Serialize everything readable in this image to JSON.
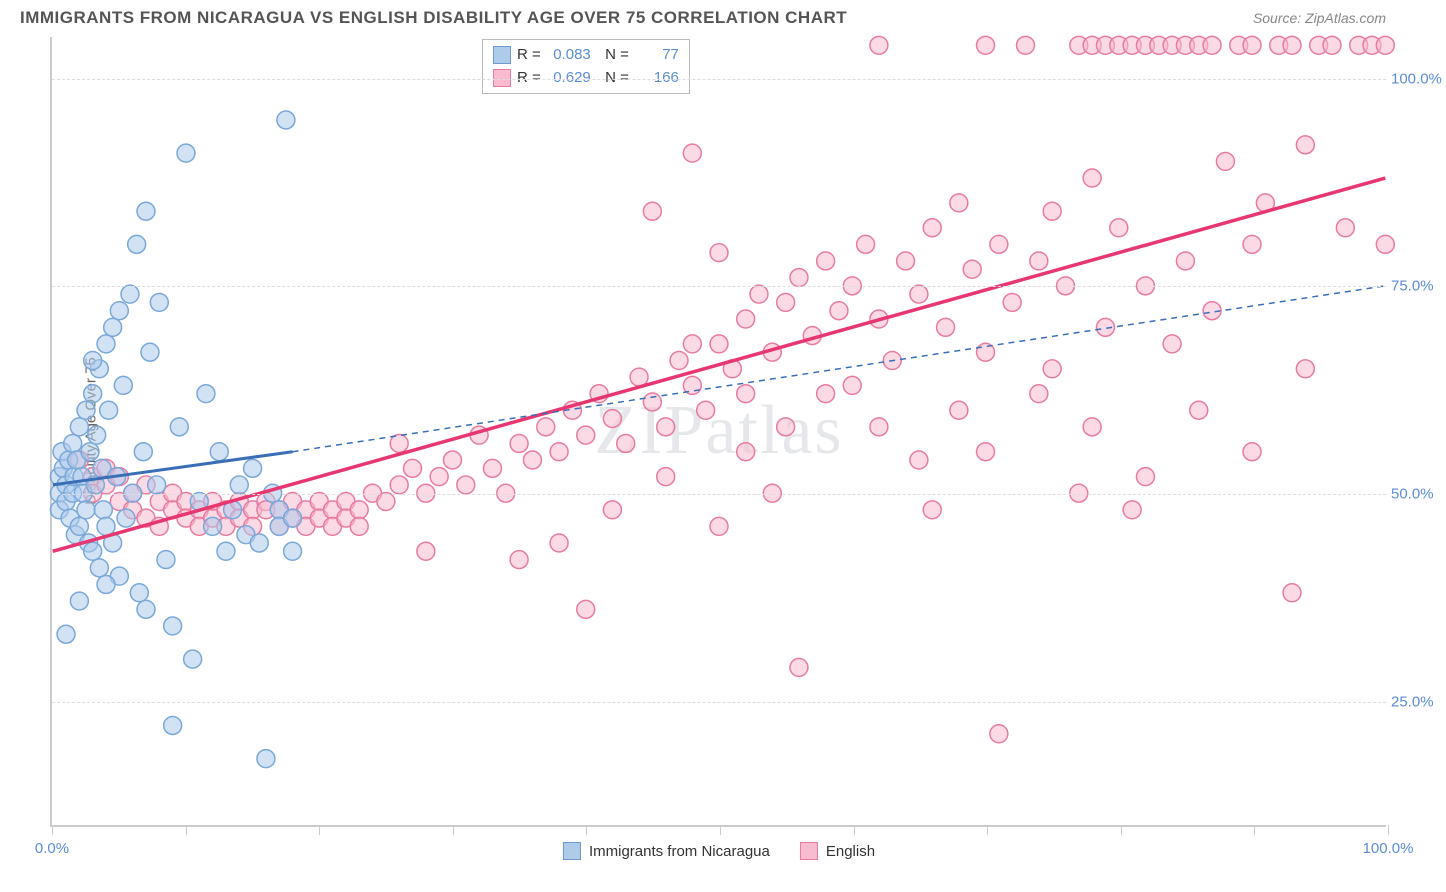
{
  "title": "IMMIGRANTS FROM NICARAGUA VS ENGLISH DISABILITY AGE OVER 75 CORRELATION CHART",
  "source": "Source: ZipAtlas.com",
  "watermark": "ZIPatlas",
  "ylabel": "Disability Age Over 75",
  "chart": {
    "type": "scatter",
    "xlim": [
      0,
      100
    ],
    "ylim": [
      10,
      105
    ],
    "yticks": [
      25,
      50,
      75,
      100
    ],
    "ytick_labels": [
      "25.0%",
      "50.0%",
      "75.0%",
      "100.0%"
    ],
    "xticks": [
      0,
      10,
      20,
      30,
      40,
      50,
      60,
      70,
      80,
      90,
      100
    ],
    "xtick_labels_shown": {
      "0": "0.0%",
      "100": "100.0%"
    },
    "grid_color": "#dddddd",
    "background_color": "#ffffff",
    "marker_radius": 9,
    "marker_stroke_width": 1.5,
    "series": [
      {
        "name": "Immigrants from Nicaragua",
        "fill": "rgba(173,202,237,0.55)",
        "stroke": "#7aa8d8",
        "R": "0.083",
        "N": "77",
        "trend_solid": {
          "x1": 0,
          "y1": 51,
          "x2": 18,
          "y2": 55,
          "color": "#3a6fb7",
          "width": 3
        },
        "trend_dash": {
          "x1": 18,
          "y1": 55,
          "x2": 100,
          "y2": 75,
          "color": "#3a6fb7",
          "width": 1.5
        },
        "points": [
          [
            0.5,
            50
          ],
          [
            0.5,
            52
          ],
          [
            0.5,
            48
          ],
          [
            0.7,
            55
          ],
          [
            0.8,
            53
          ],
          [
            1,
            51
          ],
          [
            1,
            49
          ],
          [
            1.2,
            54
          ],
          [
            1.3,
            47
          ],
          [
            1.5,
            56
          ],
          [
            1.5,
            50
          ],
          [
            1.6,
            52
          ],
          [
            1.7,
            45
          ],
          [
            1.8,
            54
          ],
          [
            2,
            58
          ],
          [
            2,
            46
          ],
          [
            2.2,
            52
          ],
          [
            2.3,
            50
          ],
          [
            2.5,
            60
          ],
          [
            2.5,
            48
          ],
          [
            2.7,
            44
          ],
          [
            2.8,
            55
          ],
          [
            3,
            62
          ],
          [
            3,
            43
          ],
          [
            3.2,
            51
          ],
          [
            3.3,
            57
          ],
          [
            3.5,
            65
          ],
          [
            3.5,
            41
          ],
          [
            3.7,
            53
          ],
          [
            3.8,
            48
          ],
          [
            4,
            68
          ],
          [
            4,
            46
          ],
          [
            4.2,
            60
          ],
          [
            4.5,
            70
          ],
          [
            4.5,
            44
          ],
          [
            4.8,
            52
          ],
          [
            5,
            72
          ],
          [
            5,
            40
          ],
          [
            5.3,
            63
          ],
          [
            5.5,
            47
          ],
          [
            5.8,
            74
          ],
          [
            6,
            50
          ],
          [
            6.3,
            80
          ],
          [
            6.5,
            38
          ],
          [
            6.8,
            55
          ],
          [
            7,
            84
          ],
          [
            7,
            36
          ],
          [
            7.3,
            67
          ],
          [
            7.8,
            51
          ],
          [
            8,
            73
          ],
          [
            8.5,
            42
          ],
          [
            9,
            34
          ],
          [
            9.5,
            58
          ],
          [
            10,
            91
          ],
          [
            10.5,
            30
          ],
          [
            11,
            49
          ],
          [
            11.5,
            62
          ],
          [
            12,
            46
          ],
          [
            12.5,
            55
          ],
          [
            13,
            43
          ],
          [
            13.5,
            48
          ],
          [
            14,
            51
          ],
          [
            14.5,
            45
          ],
          [
            15,
            53
          ],
          [
            15.5,
            44
          ],
          [
            16,
            18
          ],
          [
            16.5,
            50
          ],
          [
            17,
            48
          ],
          [
            17,
            46
          ],
          [
            17.5,
            95
          ],
          [
            18,
            43
          ],
          [
            18,
            47
          ],
          [
            1,
            33
          ],
          [
            2,
            37
          ],
          [
            3,
            66
          ],
          [
            4,
            39
          ],
          [
            9,
            22
          ]
        ]
      },
      {
        "name": "English",
        "fill": "rgba(248,187,208,0.55)",
        "stroke": "#e97ba0",
        "R": "0.629",
        "N": "166",
        "trend_solid": {
          "x1": 0,
          "y1": 43,
          "x2": 100,
          "y2": 88,
          "color": "#e73670",
          "width": 3.5
        },
        "trend_dash": null,
        "points": [
          [
            2,
            54
          ],
          [
            3,
            52
          ],
          [
            3,
            50
          ],
          [
            4,
            53
          ],
          [
            4,
            51
          ],
          [
            5,
            52
          ],
          [
            5,
            49
          ],
          [
            6,
            50
          ],
          [
            6,
            48
          ],
          [
            7,
            51
          ],
          [
            7,
            47
          ],
          [
            8,
            49
          ],
          [
            8,
            46
          ],
          [
            9,
            50
          ],
          [
            9,
            48
          ],
          [
            10,
            49
          ],
          [
            10,
            47
          ],
          [
            11,
            48
          ],
          [
            11,
            46
          ],
          [
            12,
            49
          ],
          [
            12,
            47
          ],
          [
            13,
            48
          ],
          [
            13,
            46
          ],
          [
            14,
            49
          ],
          [
            14,
            47
          ],
          [
            15,
            48
          ],
          [
            15,
            46
          ],
          [
            16,
            49
          ],
          [
            16,
            48
          ],
          [
            17,
            48
          ],
          [
            17,
            46
          ],
          [
            18,
            49
          ],
          [
            18,
            47
          ],
          [
            19,
            48
          ],
          [
            19,
            46
          ],
          [
            20,
            49
          ],
          [
            20,
            47
          ],
          [
            21,
            48
          ],
          [
            21,
            46
          ],
          [
            22,
            49
          ],
          [
            22,
            47
          ],
          [
            23,
            48
          ],
          [
            23,
            46
          ],
          [
            24,
            50
          ],
          [
            25,
            49
          ],
          [
            26,
            51
          ],
          [
            26,
            56
          ],
          [
            27,
            53
          ],
          [
            28,
            50
          ],
          [
            28,
            43
          ],
          [
            29,
            52
          ],
          [
            30,
            54
          ],
          [
            31,
            51
          ],
          [
            32,
            57
          ],
          [
            33,
            53
          ],
          [
            34,
            50
          ],
          [
            35,
            56
          ],
          [
            35,
            42
          ],
          [
            36,
            54
          ],
          [
            37,
            58
          ],
          [
            38,
            55
          ],
          [
            39,
            60
          ],
          [
            40,
            57
          ],
          [
            40,
            36
          ],
          [
            41,
            62
          ],
          [
            42,
            59
          ],
          [
            43,
            56
          ],
          [
            44,
            64
          ],
          [
            45,
            61
          ],
          [
            45,
            84
          ],
          [
            46,
            58
          ],
          [
            47,
            66
          ],
          [
            48,
            63
          ],
          [
            48,
            91
          ],
          [
            49,
            60
          ],
          [
            50,
            68
          ],
          [
            50,
            79
          ],
          [
            51,
            65
          ],
          [
            52,
            71
          ],
          [
            52,
            62
          ],
          [
            53,
            74
          ],
          [
            54,
            67
          ],
          [
            55,
            73
          ],
          [
            55,
            58
          ],
          [
            56,
            76
          ],
          [
            56,
            29
          ],
          [
            57,
            69
          ],
          [
            58,
            78
          ],
          [
            59,
            72
          ],
          [
            60,
            75
          ],
          [
            60,
            63
          ],
          [
            61,
            80
          ],
          [
            62,
            71
          ],
          [
            62,
            104
          ],
          [
            63,
            66
          ],
          [
            64,
            78
          ],
          [
            65,
            74
          ],
          [
            65,
            54
          ],
          [
            66,
            82
          ],
          [
            67,
            70
          ],
          [
            68,
            85
          ],
          [
            68,
            60
          ],
          [
            69,
            77
          ],
          [
            70,
            104
          ],
          [
            70,
            67
          ],
          [
            71,
            80
          ],
          [
            71,
            21
          ],
          [
            72,
            73
          ],
          [
            73,
            104
          ],
          [
            74,
            78
          ],
          [
            75,
            84
          ],
          [
            75,
            65
          ],
          [
            76,
            75
          ],
          [
            77,
            104
          ],
          [
            77,
            50
          ],
          [
            78,
            88
          ],
          [
            78,
            104
          ],
          [
            79,
            104
          ],
          [
            79,
            70
          ],
          [
            80,
            104
          ],
          [
            80,
            82
          ],
          [
            81,
            104
          ],
          [
            81,
            48
          ],
          [
            82,
            104
          ],
          [
            82,
            75
          ],
          [
            83,
            104
          ],
          [
            84,
            104
          ],
          [
            84,
            68
          ],
          [
            85,
            104
          ],
          [
            85,
            78
          ],
          [
            86,
            104
          ],
          [
            87,
            104
          ],
          [
            87,
            72
          ],
          [
            88,
            90
          ],
          [
            89,
            104
          ],
          [
            90,
            104
          ],
          [
            90,
            80
          ],
          [
            91,
            85
          ],
          [
            92,
            104
          ],
          [
            93,
            104
          ],
          [
            93,
            38
          ],
          [
            94,
            92
          ],
          [
            95,
            104
          ],
          [
            96,
            104
          ],
          [
            97,
            82
          ],
          [
            98,
            104
          ],
          [
            99,
            104
          ],
          [
            100,
            104
          ],
          [
            100,
            80
          ],
          [
            48,
            68
          ],
          [
            52,
            55
          ],
          [
            58,
            62
          ],
          [
            62,
            58
          ],
          [
            66,
            48
          ],
          [
            70,
            55
          ],
          [
            74,
            62
          ],
          [
            78,
            58
          ],
          [
            82,
            52
          ],
          [
            86,
            60
          ],
          [
            90,
            55
          ],
          [
            94,
            65
          ],
          [
            38,
            44
          ],
          [
            42,
            48
          ],
          [
            46,
            52
          ],
          [
            50,
            46
          ],
          [
            54,
            50
          ]
        ]
      }
    ]
  },
  "legend": {
    "swatch_blue_fill": "#aecbe9",
    "swatch_blue_stroke": "#6d9ad0",
    "swatch_pink_fill": "#f8bbd0",
    "swatch_pink_stroke": "#e97ba0"
  }
}
